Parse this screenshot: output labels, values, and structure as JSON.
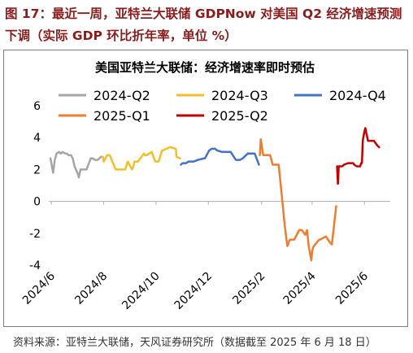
{
  "figure_title": "图 17：最近一周，亚特兰大联储 GDPNow 对美国 Q2 经济增速预测下调（实际 GDP 环比折年率，单位 %）",
  "source": "资料来源：亚特兰大联储，天风证券研究所（数据截至 2025 年 6 月 18 日）",
  "chart_data": {
    "type": "line",
    "title": "美国亚特兰大联储：经济增速率即时预估",
    "xlabel": "",
    "ylabel": "",
    "ylim": [
      -4,
      6
    ],
    "yticks": [
      -4,
      -2,
      0,
      2,
      4,
      6
    ],
    "xlim": [
      "2024-05-29",
      "2025-07-01"
    ],
    "xticks": [
      {
        "date": "2024-06-01",
        "label": "2024/6"
      },
      {
        "date": "2024-08-01",
        "label": "2024/8"
      },
      {
        "date": "2024-10-01",
        "label": "2024/10"
      },
      {
        "date": "2024-12-01",
        "label": "2024/12"
      },
      {
        "date": "2025-02-01",
        "label": "2025/2"
      },
      {
        "date": "2025-04-01",
        "label": "2025/4"
      },
      {
        "date": "2025-06-01",
        "label": "2025/6"
      }
    ],
    "grid": false,
    "legend_position": "top",
    "series": [
      {
        "name": "2024-Q2",
        "color": "#a5a5a5",
        "x": [
          "2024-05-31",
          "2024-06-03",
          "2024-06-05",
          "2024-06-07",
          "2024-06-10",
          "2024-06-12",
          "2024-06-14",
          "2024-06-17",
          "2024-06-19",
          "2024-06-21",
          "2024-06-24",
          "2024-06-26",
          "2024-06-28",
          "2024-07-02",
          "2024-07-03",
          "2024-07-05",
          "2024-07-09",
          "2024-07-12",
          "2024-07-17",
          "2024-07-19",
          "2024-07-22",
          "2024-07-25",
          "2024-07-29"
        ],
        "y": [
          2.7,
          1.8,
          2.6,
          3.0,
          3.1,
          3.0,
          3.1,
          3.0,
          3.0,
          2.9,
          2.9,
          2.7,
          2.2,
          1.7,
          1.5,
          2.0,
          2.0,
          2.0,
          2.7,
          2.7,
          2.6,
          2.6,
          2.8
        ]
      },
      {
        "name": "2024-Q3",
        "color": "#f2bf2c",
        "x": [
          "2024-07-31",
          "2024-08-01",
          "2024-08-05",
          "2024-08-08",
          "2024-08-15",
          "2024-08-16",
          "2024-08-21",
          "2024-08-26",
          "2024-08-29",
          "2024-09-03",
          "2024-09-04",
          "2024-09-06",
          "2024-09-10",
          "2024-09-17",
          "2024-09-18",
          "2024-09-20",
          "2024-09-26",
          "2024-09-30",
          "2024-10-01",
          "2024-10-04",
          "2024-10-08",
          "2024-10-09",
          "2024-10-17",
          "2024-10-18",
          "2024-10-24",
          "2024-10-25",
          "2024-10-29"
        ],
        "y": [
          2.8,
          2.5,
          2.9,
          2.9,
          2.0,
          2.0,
          2.0,
          2.0,
          2.5,
          2.0,
          2.1,
          2.5,
          2.5,
          3.0,
          2.9,
          2.9,
          3.1,
          2.5,
          2.5,
          2.5,
          3.2,
          3.2,
          3.4,
          3.4,
          3.3,
          2.8,
          2.7
        ]
      },
      {
        "name": "2024-Q4",
        "color": "#4472c4",
        "x": [
          "2024-10-30",
          "2024-11-01",
          "2024-11-05",
          "2024-11-08",
          "2024-11-14",
          "2024-11-19",
          "2024-11-26",
          "2024-11-27",
          "2024-12-02",
          "2024-12-05",
          "2024-12-09",
          "2024-12-11",
          "2024-12-17",
          "2024-12-20",
          "2024-12-23",
          "2024-12-27",
          "2025-01-02",
          "2025-01-07",
          "2025-01-10",
          "2025-01-16",
          "2025-01-17",
          "2025-01-24",
          "2025-01-29"
        ],
        "y": [
          2.3,
          2.4,
          2.4,
          2.5,
          2.5,
          2.6,
          2.7,
          2.7,
          3.2,
          3.3,
          3.3,
          3.2,
          3.1,
          3.1,
          3.1,
          3.1,
          2.6,
          2.6,
          2.7,
          3.0,
          3.0,
          3.0,
          2.3
        ]
      },
      {
        "name": "2025-Q1",
        "color": "#ed7d31",
        "x": [
          "2025-01-30",
          "2025-01-31",
          "2025-02-03",
          "2025-02-06",
          "2025-02-11",
          "2025-02-14",
          "2025-02-19",
          "2025-02-21",
          "2025-02-28",
          "2025-03-03",
          "2025-03-06",
          "2025-03-11",
          "2025-03-17",
          "2025-03-19",
          "2025-03-20",
          "2025-03-24",
          "2025-03-26",
          "2025-03-28",
          "2025-03-31",
          "2025-04-01",
          "2025-04-02",
          "2025-04-03",
          "2025-04-09",
          "2025-04-10",
          "2025-04-17",
          "2025-04-22",
          "2025-04-24",
          "2025-04-29"
        ],
        "y": [
          2.9,
          3.9,
          2.9,
          2.9,
          2.9,
          2.3,
          2.3,
          2.3,
          -1.5,
          -2.8,
          -2.4,
          -2.4,
          -1.8,
          -1.8,
          -1.8,
          -2.1,
          -1.8,
          -2.8,
          -3.7,
          -3.1,
          -2.9,
          -2.8,
          -2.4,
          -2.4,
          -2.2,
          -2.6,
          -2.7,
          -0.3
        ]
      },
      {
        "name": "2025-Q2",
        "color": "#c00000",
        "x": [
          "2025-04-30",
          "2025-05-01",
          "2025-05-02",
          "2025-05-06",
          "2025-05-08",
          "2025-05-13",
          "2025-05-15",
          "2025-05-16",
          "2025-05-19",
          "2025-05-20",
          "2025-05-23",
          "2025-05-27",
          "2025-05-28",
          "2025-05-29",
          "2025-05-30",
          "2025-06-01",
          "2025-06-02",
          "2025-06-05",
          "2025-06-09",
          "2025-06-12",
          "2025-06-16",
          "2025-06-18"
        ],
        "y": [
          2.2,
          1.1,
          2.2,
          2.2,
          2.3,
          2.4,
          2.4,
          2.4,
          2.4,
          2.3,
          2.2,
          2.2,
          2.4,
          2.4,
          3.8,
          4.4,
          4.6,
          3.8,
          3.8,
          3.8,
          3.5,
          3.4
        ]
      }
    ]
  }
}
